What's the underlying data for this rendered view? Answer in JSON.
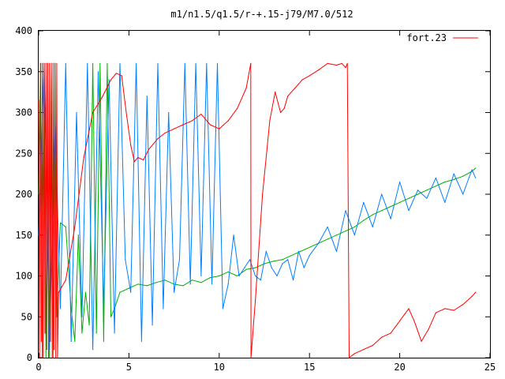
{
  "chart_data": {
    "type": "line",
    "title": "m1/n1.5/q1.5/r-+.15-j79/M7.0/512",
    "xlabel": "",
    "ylabel": "",
    "xlim": [
      0,
      25
    ],
    "ylim": [
      0,
      400
    ],
    "x_ticks": [
      0,
      5,
      10,
      15,
      20,
      25
    ],
    "y_ticks": [
      0,
      50,
      100,
      150,
      200,
      250,
      300,
      350,
      400
    ],
    "grid": false,
    "legend": {
      "position": "top-right",
      "entries": [
        "fort.23"
      ]
    },
    "series": [
      {
        "name": "fort.23",
        "color": "#ff0000",
        "x": [
          0,
          0.05,
          0.1,
          0.15,
          0.2,
          0.25,
          0.3,
          0.35,
          0.4,
          0.45,
          0.5,
          0.55,
          0.6,
          0.65,
          0.7,
          0.75,
          0.8,
          0.85,
          0.9,
          0.95,
          1.0,
          1.05,
          1.1,
          1.5,
          2.0,
          2.5,
          3.0,
          3.5,
          4.0,
          4.3,
          4.6,
          4.85,
          5.1,
          5.3,
          5.5,
          5.8,
          6.1,
          6.6,
          7.0,
          7.5,
          8.0,
          8.5,
          9.0,
          9.5,
          10.0,
          10.5,
          11.0,
          11.5,
          11.75,
          11.76,
          12.0,
          12.4,
          12.8,
          13.1,
          13.4,
          13.6,
          13.8,
          14.2,
          14.6,
          15.0,
          15.5,
          16.0,
          16.5,
          16.8,
          17.0,
          17.1,
          17.2,
          17.5,
          18.0,
          18.5,
          19.0,
          19.5,
          20.0,
          20.5,
          20.8,
          21.2,
          21.6,
          22.0,
          22.5,
          23.0,
          23.5,
          24.0,
          24.2
        ],
        "y": [
          315,
          0,
          360,
          20,
          360,
          0,
          360,
          30,
          360,
          10,
          360,
          0,
          360,
          20,
          360,
          0,
          360,
          10,
          360,
          0,
          360,
          0,
          80,
          95,
          160,
          245,
          300,
          318,
          340,
          348,
          345,
          300,
          260,
          240,
          245,
          242,
          255,
          268,
          275,
          280,
          285,
          290,
          298,
          285,
          280,
          290,
          305,
          330,
          360,
          0,
          70,
          200,
          290,
          325,
          300,
          305,
          320,
          330,
          340,
          345,
          352,
          360,
          358,
          360,
          355,
          360,
          0,
          5,
          10,
          15,
          25,
          30,
          45,
          60,
          45,
          20,
          35,
          55,
          60,
          58,
          65,
          75,
          80
        ]
      },
      {
        "name": "",
        "color": "#0080ff",
        "x": [
          0,
          0.3,
          0.6,
          0.9,
          1.2,
          1.5,
          1.8,
          2.1,
          2.4,
          2.7,
          3.0,
          3.3,
          3.6,
          3.9,
          4.2,
          4.5,
          4.8,
          5.1,
          5.4,
          5.7,
          6.0,
          6.3,
          6.6,
          6.9,
          7.2,
          7.5,
          7.8,
          8.1,
          8.4,
          8.7,
          9.0,
          9.3,
          9.6,
          9.9,
          10.2,
          10.5,
          10.8,
          11.1,
          11.4,
          11.7,
          12.0,
          12.3,
          12.6,
          12.9,
          13.2,
          13.5,
          13.8,
          14.1,
          14.4,
          14.7,
          15.0,
          15.5,
          16.0,
          16.5,
          17.0,
          17.5,
          18.0,
          18.5,
          19.0,
          19.5,
          20.0,
          20.5,
          21.0,
          21.5,
          22.0,
          22.5,
          23.0,
          23.5,
          24.0,
          24.2
        ],
        "y": [
          150,
          360,
          10,
          300,
          60,
          360,
          20,
          300,
          50,
          360,
          10,
          350,
          60,
          340,
          30,
          360,
          120,
          80,
          360,
          20,
          320,
          40,
          360,
          60,
          300,
          80,
          120,
          360,
          90,
          360,
          100,
          360,
          90,
          360,
          60,
          90,
          150,
          100,
          110,
          120,
          100,
          95,
          130,
          110,
          100,
          115,
          120,
          95,
          130,
          110,
          125,
          140,
          160,
          130,
          180,
          150,
          190,
          160,
          200,
          170,
          215,
          180,
          205,
          195,
          220,
          190,
          225,
          200,
          230,
          220
        ]
      },
      {
        "name": "",
        "color": "#00b000",
        "x": [
          0,
          0.1,
          0.2,
          0.3,
          0.4,
          0.5,
          0.6,
          0.7,
          0.8,
          0.9,
          1.0,
          1.2,
          1.5,
          1.8,
          2.0,
          2.2,
          2.4,
          2.6,
          2.8,
          3.0,
          3.2,
          3.4,
          3.6,
          3.8,
          4.0,
          4.2,
          4.5,
          5.0,
          5.5,
          6.0,
          6.5,
          7.0,
          7.5,
          8.0,
          8.5,
          9.0,
          9.5,
          10.0,
          10.5,
          11.0,
          11.5,
          12.0,
          12.5,
          13.0,
          13.5,
          14.0,
          14.5,
          15.0,
          15.5,
          16.0,
          16.5,
          17.0,
          17.5,
          18.0,
          18.5,
          19.0,
          19.5,
          20.0,
          20.5,
          21.0,
          21.5,
          22.0,
          22.5,
          23.0,
          23.5,
          24.0,
          24.2
        ],
        "y": [
          200,
          360,
          0,
          360,
          0,
          360,
          0,
          360,
          0,
          360,
          50,
          165,
          160,
          60,
          20,
          150,
          30,
          80,
          40,
          360,
          30,
          360,
          20,
          360,
          50,
          60,
          80,
          85,
          90,
          88,
          92,
          95,
          90,
          88,
          95,
          92,
          98,
          100,
          105,
          100,
          108,
          110,
          115,
          118,
          120,
          125,
          130,
          135,
          140,
          145,
          150,
          155,
          160,
          168,
          175,
          180,
          185,
          190,
          195,
          200,
          205,
          210,
          215,
          218,
          222,
          228,
          232
        ]
      }
    ]
  }
}
